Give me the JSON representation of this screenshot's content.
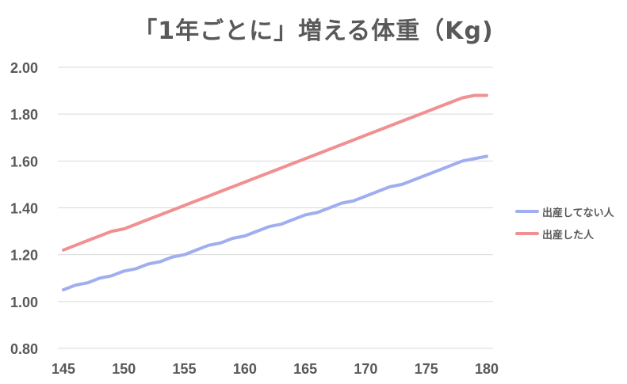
{
  "chart_data": {
    "type": "line",
    "title": "「1年ごとに」増える体重（Kg)",
    "xlabel": "",
    "ylabel": "",
    "ylim": [
      0.8,
      2.0
    ],
    "yticks": [
      "2.00",
      "1.80",
      "1.60",
      "1.40",
      "1.20",
      "1.00",
      "0.80"
    ],
    "xticks": [
      "145",
      "150",
      "155",
      "160",
      "165",
      "170",
      "175",
      "180"
    ],
    "grid": true,
    "legend_position": "right",
    "x": [
      145,
      146,
      147,
      148,
      149,
      150,
      151,
      152,
      153,
      154,
      155,
      156,
      157,
      158,
      159,
      160,
      161,
      162,
      163,
      164,
      165,
      166,
      167,
      168,
      169,
      170,
      171,
      172,
      173,
      174,
      175,
      176,
      177,
      178,
      179,
      180
    ],
    "series": [
      {
        "name": "出産してない人",
        "color": "#a0aef0",
        "values": [
          1.05,
          1.07,
          1.08,
          1.1,
          1.11,
          1.13,
          1.14,
          1.16,
          1.17,
          1.19,
          1.2,
          1.22,
          1.24,
          1.25,
          1.27,
          1.28,
          1.3,
          1.32,
          1.33,
          1.35,
          1.37,
          1.38,
          1.4,
          1.42,
          1.43,
          1.45,
          1.47,
          1.49,
          1.5,
          1.52,
          1.54,
          1.56,
          1.58,
          1.6,
          1.61,
          1.62
        ]
      },
      {
        "name": "出産した人",
        "color": "#f09090",
        "values": [
          1.22,
          1.24,
          1.26,
          1.28,
          1.3,
          1.31,
          1.33,
          1.35,
          1.37,
          1.39,
          1.41,
          1.43,
          1.45,
          1.47,
          1.49,
          1.51,
          1.53,
          1.55,
          1.57,
          1.59,
          1.61,
          1.63,
          1.65,
          1.67,
          1.69,
          1.71,
          1.73,
          1.75,
          1.77,
          1.79,
          1.81,
          1.83,
          1.85,
          1.87,
          1.88,
          1.88
        ]
      }
    ]
  }
}
